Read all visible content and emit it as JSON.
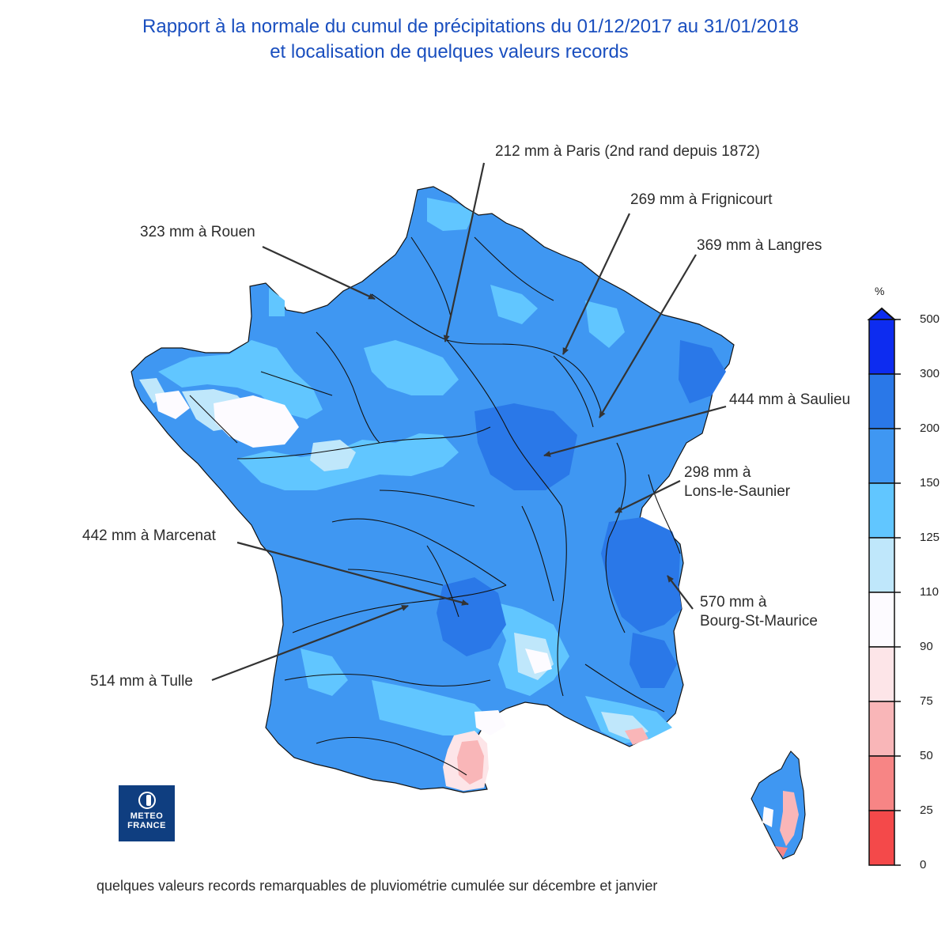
{
  "title": {
    "line1": "Rapport à la normale du cumul de précipitations du 01/12/2017 au 31/01/2018",
    "line2": "et localisation de quelques valeurs records"
  },
  "caption": "quelques valeurs records remarquables de pluviométrie cumulée sur décembre et janvier",
  "logo": {
    "line1": "METEO",
    "line2": "FRANCE"
  },
  "records": [
    {
      "id": "paris",
      "text": "212 mm à Paris (2nd rand depuis 1872)"
    },
    {
      "id": "frignicourt",
      "text": "269 mm à Frignicourt"
    },
    {
      "id": "langres",
      "text": "369 mm à Langres"
    },
    {
      "id": "rouen",
      "text": "323 mm à Rouen"
    },
    {
      "id": "saulieu",
      "text": "444 mm à Saulieu"
    },
    {
      "id": "lons_1",
      "text": "298 mm à"
    },
    {
      "id": "lons_2",
      "text": "Lons-le-Saunier"
    },
    {
      "id": "marcenat",
      "text": "442 mm à Marcenat"
    },
    {
      "id": "bsm_1",
      "text": "570 mm à"
    },
    {
      "id": "bsm_2",
      "text": "Bourg-St-Maurice"
    },
    {
      "id": "tulle",
      "text": "514 mm à Tulle"
    }
  ],
  "legend": {
    "unit": "%",
    "ticks": [
      "500",
      "300",
      "200",
      "150",
      "125",
      "110",
      "90",
      "75",
      "50",
      "25",
      "0"
    ],
    "colors": [
      "#0d2cf0",
      "#2a78e8",
      "#3f97f2",
      "#61c6ff",
      "#bfe7fb",
      "#fdfbff",
      "#fde5e8",
      "#f9b6b8",
      "#f78585",
      "#f4494a"
    ]
  },
  "palette": {
    "ratio_150_200": "#3f97f2",
    "ratio_200_300": "#2a78e8",
    "ratio_125_150": "#61c6ff",
    "ratio_110_125": "#bfe7fb",
    "ratio_90_110": "#fdfbff",
    "ratio_75_90": "#fde5e8",
    "ratio_50_75": "#f9b6b8",
    "title_color": "#1a4fbf",
    "logo_bg": "#0f3e80"
  }
}
